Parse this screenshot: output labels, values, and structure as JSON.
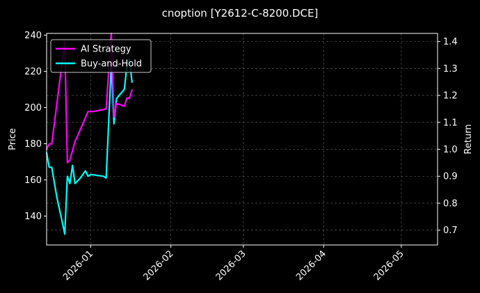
{
  "chart_data": {
    "type": "line",
    "title": "cnoption [Y2612-C-8200.DCE]",
    "xlabel": "",
    "ylabel_left": "Price",
    "ylabel_right": "Return",
    "x_range": [
      "2025-12-15",
      "2026-05-15"
    ],
    "x_ticks": [
      "2026-01",
      "2026-02",
      "2026-03",
      "2026-04",
      "2026-05"
    ],
    "y_left_range": [
      124,
      241
    ],
    "y_left_ticks": [
      140,
      160,
      180,
      200,
      220,
      240
    ],
    "y_right_range": [
      0.645,
      1.43
    ],
    "y_right_ticks": [
      0.7,
      0.8,
      0.9,
      1.0,
      1.1,
      1.2,
      1.3,
      1.4
    ],
    "grid": true,
    "legend_position": "top-left",
    "series": [
      {
        "name": "AI Strategy",
        "axis": "right",
        "color": "#ff00ff",
        "points": [
          [
            "2025-12-15",
            1.0
          ],
          [
            "2025-12-16",
            1.02
          ],
          [
            "2025-12-17",
            1.02
          ],
          [
            "2025-12-22",
            1.4
          ],
          [
            "2025-12-23",
            0.95
          ],
          [
            "2025-12-24",
            0.96
          ],
          [
            "2025-12-26",
            1.03
          ],
          [
            "2025-12-27",
            1.05
          ],
          [
            "2025-12-31",
            1.14
          ],
          [
            "2026-01-02",
            1.14
          ],
          [
            "2026-01-07",
            1.15
          ],
          [
            "2026-01-09",
            1.43
          ],
          [
            "2026-01-10",
            1.12
          ],
          [
            "2026-01-11",
            1.17
          ],
          [
            "2026-01-14",
            1.16
          ],
          [
            "2026-01-15",
            1.19
          ],
          [
            "2026-01-16",
            1.19
          ],
          [
            "2026-01-17",
            1.22
          ]
        ]
      },
      {
        "name": "Buy-and-Hold",
        "axis": "left",
        "color": "#00ffff",
        "points": [
          [
            "2025-12-15",
            175
          ],
          [
            "2025-12-16",
            167
          ],
          [
            "2025-12-17",
            167
          ],
          [
            "2025-12-19",
            150
          ],
          [
            "2025-12-21",
            137
          ],
          [
            "2025-12-22",
            130
          ],
          [
            "2025-12-23",
            162
          ],
          [
            "2025-12-24",
            158
          ],
          [
            "2025-12-25",
            168
          ],
          [
            "2025-12-26",
            158
          ],
          [
            "2025-12-28",
            161
          ],
          [
            "2025-12-30",
            165
          ],
          [
            "2025-12-31",
            162
          ],
          [
            "2026-01-01",
            163
          ],
          [
            "2026-01-06",
            162
          ],
          [
            "2026-01-07",
            161
          ],
          [
            "2026-01-09",
            224
          ],
          [
            "2026-01-10",
            191
          ],
          [
            "2026-01-11",
            205
          ],
          [
            "2026-01-14",
            210
          ],
          [
            "2026-01-15",
            223
          ],
          [
            "2026-01-16",
            227
          ],
          [
            "2026-01-17",
            214
          ]
        ]
      }
    ]
  }
}
